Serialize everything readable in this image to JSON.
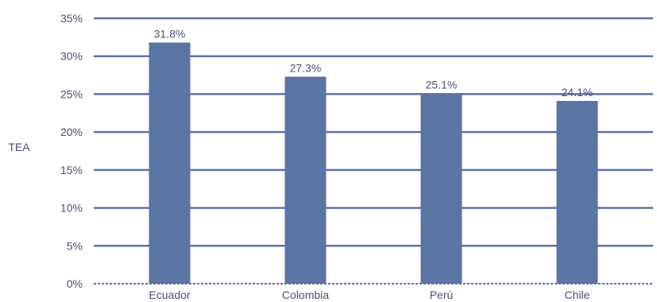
{
  "chart_data": {
    "type": "bar",
    "categories": [
      "Ecuador",
      "Colombia",
      "Perú",
      "Chile"
    ],
    "values": [
      31.8,
      27.3,
      25.1,
      24.1
    ],
    "data_labels": [
      "31.8%",
      "27.3%",
      "25.1%",
      "24.1%"
    ],
    "title": "",
    "xlabel": "",
    "ylabel": "TEA",
    "ylim": [
      0,
      35
    ],
    "yticks": [
      0,
      5,
      10,
      15,
      20,
      25,
      30,
      35
    ],
    "ytick_labels": [
      "0%",
      "5%",
      "10%",
      "15%",
      "20%",
      "25%",
      "30%",
      "35%"
    ],
    "grid": true,
    "legend": "none",
    "colors": {
      "bar": "#5b74a3",
      "grid": "#5b74a3",
      "text": "#4a4f7a"
    }
  }
}
